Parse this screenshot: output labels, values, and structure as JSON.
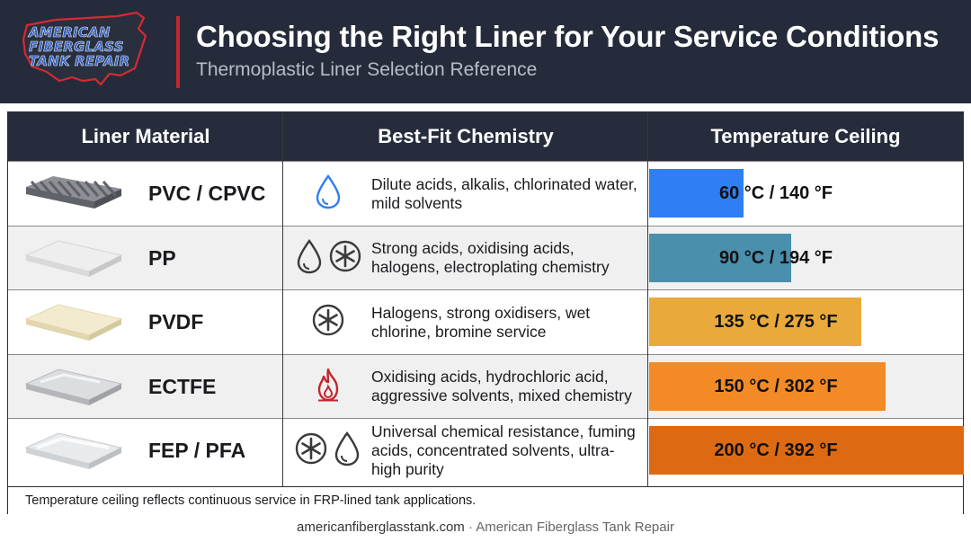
{
  "logo": {
    "line1": "AMERICAN",
    "line2": "FIBERGLASS",
    "line3": "TANK REPAIR"
  },
  "header": {
    "title": "Choosing the Right Liner for Your Service Conditions",
    "subtitle": "Thermoplastic Liner Selection Reference"
  },
  "table": {
    "columns": [
      "Liner Material",
      "Best-Fit Chemistry",
      "Temperature Ceiling"
    ],
    "rows": [
      {
        "material": "PVC / CPVC",
        "material_swatch": "grey-ribbed-sheet",
        "icons": [
          "water-drop-icon"
        ],
        "chemistry": "Dilute acids, alkalis, chlorinated water, mild solvents",
        "temperature": "60 °C / 140 °F",
        "temp_c": 60,
        "bar_color": "#2f7ef2"
      },
      {
        "material": "PP",
        "material_swatch": "white-sheet",
        "icons": [
          "water-drop-icon",
          "asterisk-circle-icon"
        ],
        "chemistry": "Strong acids, oxidising acids, halogens, electroplating chemistry",
        "temperature": "90 °C / 194 °F",
        "temp_c": 90,
        "bar_color": "#4a8fab"
      },
      {
        "material": "PVDF",
        "material_swatch": "cream-sheet",
        "icons": [
          "asterisk-circle-icon"
        ],
        "chemistry": "Halogens, strong oxidisers, wet chlorine, bromine service",
        "temperature": "135 °C / 275 °F",
        "temp_c": 135,
        "bar_color": "#e9aa3b"
      },
      {
        "material": "ECTFE",
        "material_swatch": "translucent-sheet",
        "icons": [
          "flame-icon"
        ],
        "chemistry": "Oxidising acids, hydrochloric acid, aggressive solvents, mixed chemistry",
        "temperature": "150 °C / 302 °F",
        "temp_c": 150,
        "bar_color": "#f28a26"
      },
      {
        "material": "FEP / PFA",
        "material_swatch": "clear-sheet",
        "icons": [
          "asterisk-circle-icon",
          "water-drop-icon"
        ],
        "chemistry": "Universal chemical resistance, fuming acids, concentrated solvents, ultra-high purity",
        "temperature": "200 °C / 392 °F",
        "temp_c": 200,
        "bar_color": "#dd6a13"
      }
    ],
    "footnote": "Temperature ceiling reflects continuous service in FRP-lined tank applications."
  },
  "source": {
    "url": "americanfiberglasstank.com",
    "separator": "·",
    "org": "American Fiberglass Tank Repair"
  },
  "colors": {
    "header_bg": "#252b3a",
    "accent_red": "#c1272d",
    "logo_blue": "#2f5fbf"
  }
}
